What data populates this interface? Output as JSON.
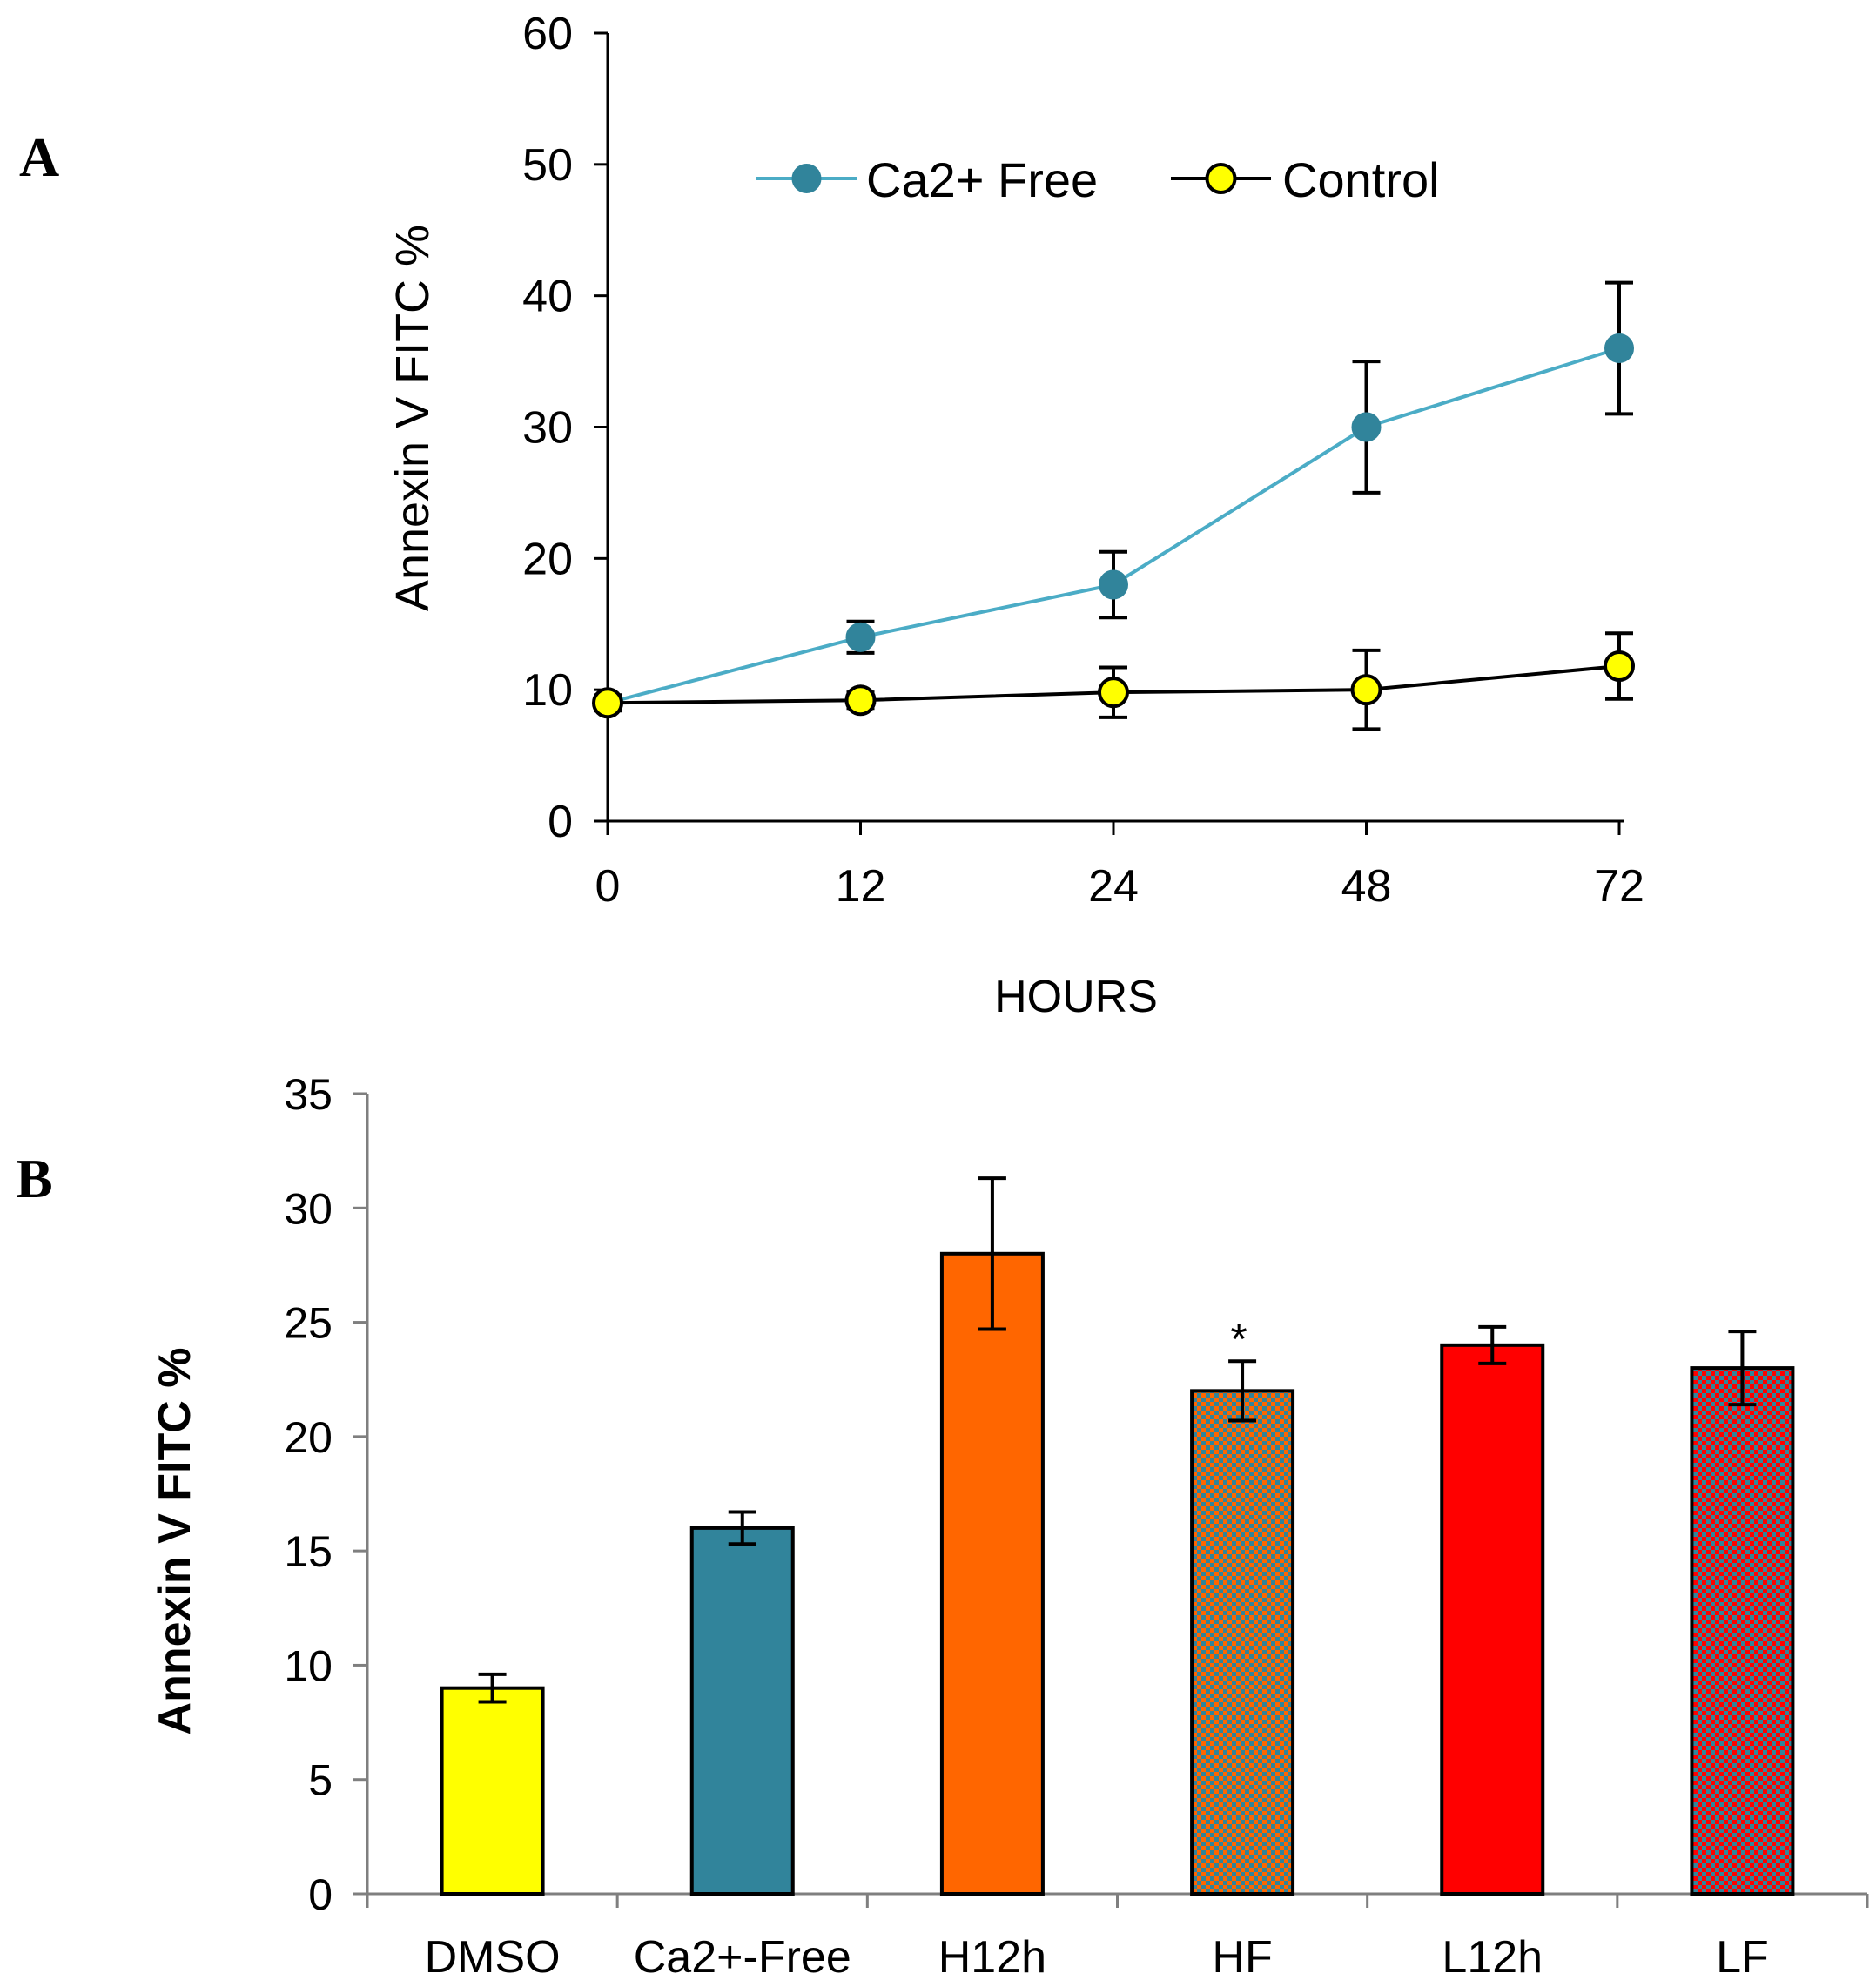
{
  "panels": [
    {
      "label": "A",
      "chart_data": {
        "type": "line",
        "categories": [
          "0",
          "12",
          "24",
          "48",
          "72"
        ],
        "series": [
          {
            "name": "Ca2+ Free",
            "values": [
              9,
              14,
              18,
              30,
              36
            ],
            "errors": [
              0.6,
              1.2,
              2.5,
              5,
              5
            ],
            "color": "#31849b",
            "marker_fill": "#31849b",
            "line_color": "#4bacc6"
          },
          {
            "name": "Control",
            "values": [
              9,
              9.2,
              9.8,
              10,
              11.8
            ],
            "errors": [
              0.5,
              0.6,
              1.9,
              3,
              2.5
            ],
            "color": "#000000",
            "marker_fill": "#ffff00",
            "line_color": "#000000"
          }
        ],
        "ylim": [
          0,
          60
        ],
        "yticks": [
          "0",
          "10",
          "20",
          "30",
          "40",
          "50",
          "60"
        ],
        "ytick_values": [
          0,
          10,
          20,
          30,
          40,
          50,
          60
        ],
        "xlabel": "HOURS",
        "ylabel": "Annexin V FITC %",
        "title": "",
        "legend": "top-center"
      }
    },
    {
      "label": "B",
      "chart_data": {
        "type": "bar",
        "categories": [
          "DMSO",
          "Ca2+-Free",
          "H12h",
          "HF",
          "L12h",
          "LF"
        ],
        "values": [
          9,
          16,
          28,
          22,
          24,
          23
        ],
        "errors": [
          0.6,
          0.7,
          3.3,
          1.3,
          0.8,
          1.6
        ],
        "colors": [
          "#ffff00",
          "#31849b",
          "#ff6600",
          "#ff6600",
          "#ff0000",
          "#ff0000"
        ],
        "patterns": [
          "solid",
          "solid",
          "solid",
          "checker",
          "solid",
          "checker"
        ],
        "pattern_color": "#31849b",
        "annotations": [
          {
            "category": "HF",
            "text": "*"
          }
        ],
        "ylim": [
          0,
          35
        ],
        "yticks": [
          "0",
          "5",
          "10",
          "15",
          "20",
          "25",
          "30",
          "35"
        ],
        "ytick_values": [
          0,
          5,
          10,
          15,
          20,
          25,
          30,
          35
        ],
        "xlabel": "",
        "ylabel": "Annexin V FITC %",
        "title": ""
      }
    }
  ]
}
